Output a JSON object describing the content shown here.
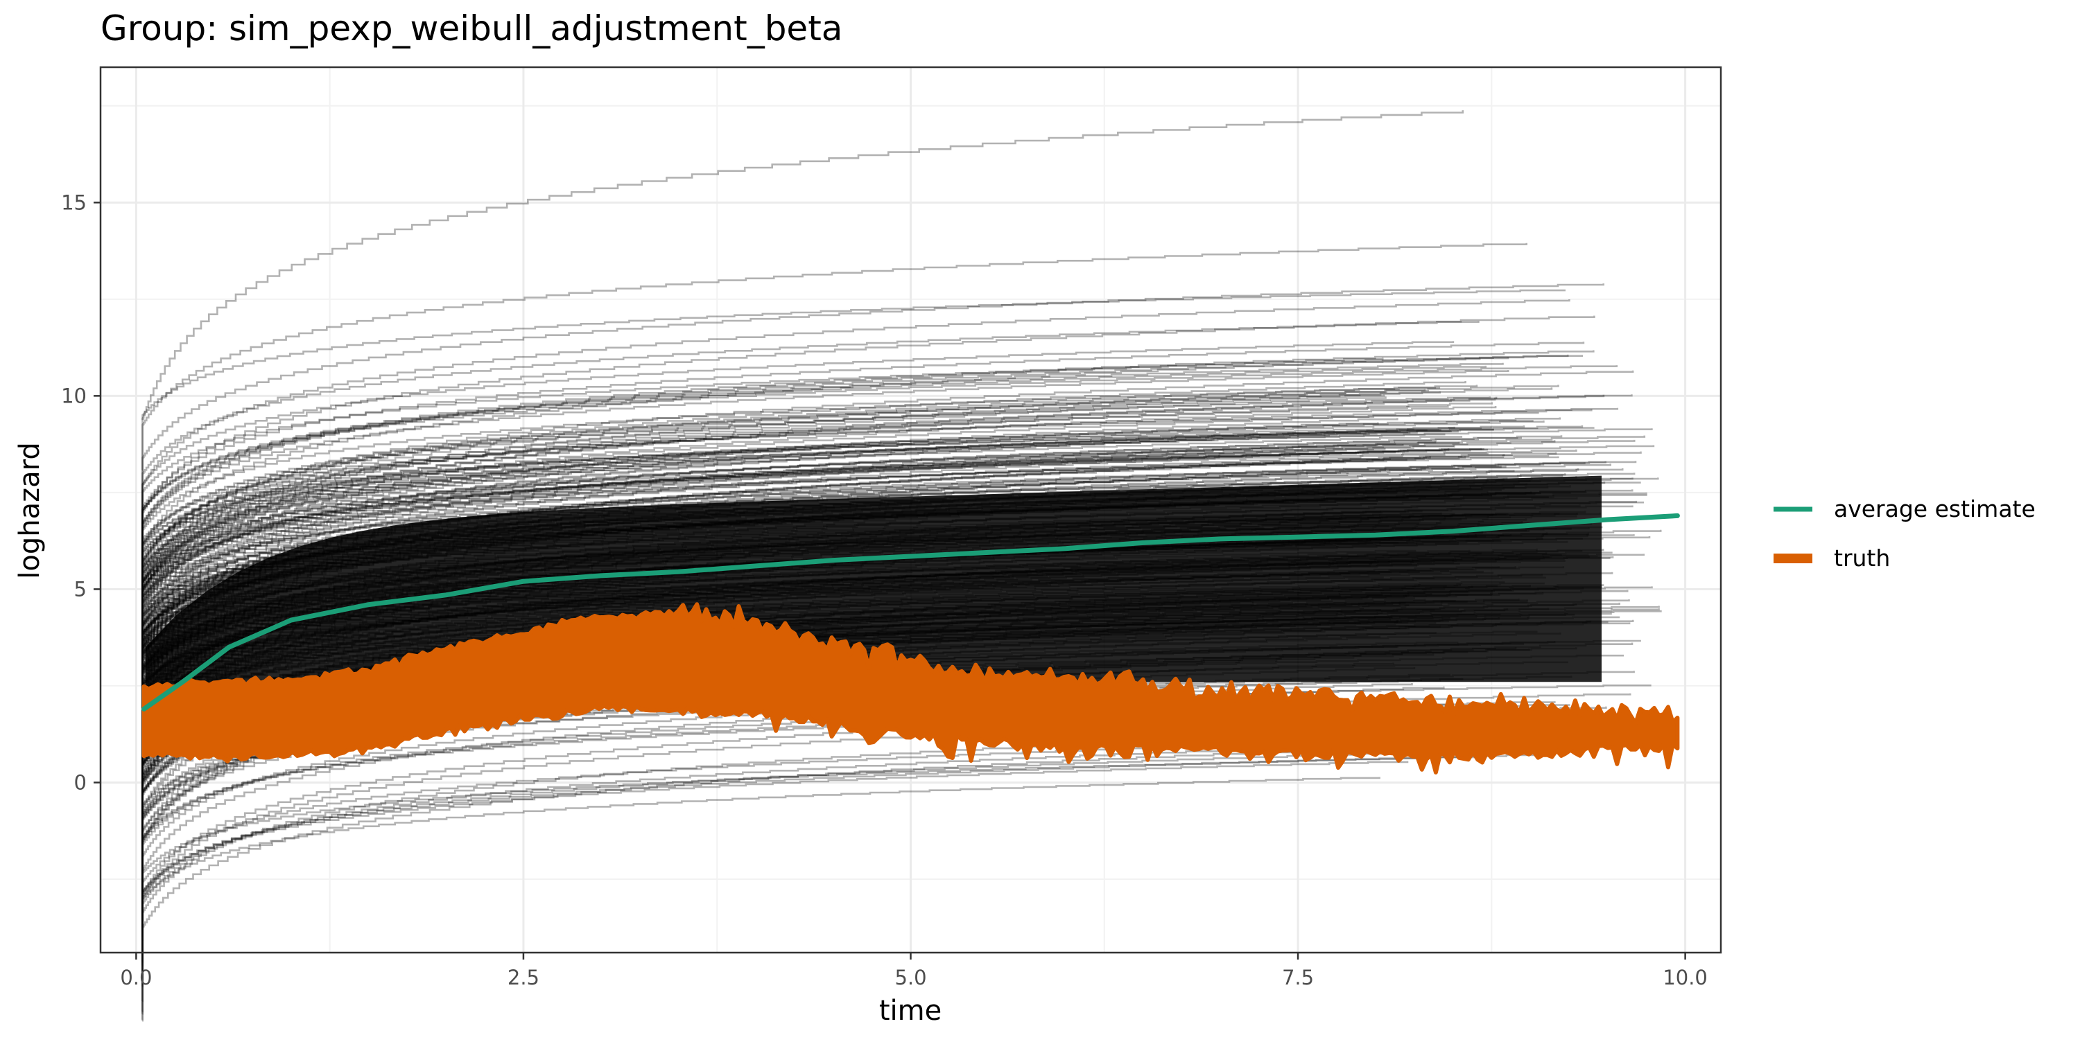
{
  "chart_data": {
    "type": "line",
    "title": "Group: sim_pexp_weibull_adjustment_beta",
    "xlabel": "time",
    "ylabel": "loghazard",
    "xlim": [
      -0.23,
      10.23
    ],
    "ylim": [
      -4.4,
      18.5
    ],
    "x_ticks": [
      0,
      2.5,
      5,
      7.5,
      10
    ],
    "x_tick_labels": [
      "0.0",
      "2.5",
      "5.0",
      "7.5",
      "10.0"
    ],
    "y_ticks": [
      0,
      5,
      10,
      15
    ],
    "y_tick_labels": [
      "0",
      "5",
      "10",
      "15"
    ],
    "grid": true,
    "legend_position": "right",
    "series": [
      {
        "name": "average estimate",
        "color": "#1B9E77",
        "x": [
          0.05,
          0.3,
          0.6,
          1.0,
          1.5,
          2.0,
          2.5,
          3.0,
          3.5,
          4.0,
          4.5,
          5.0,
          5.5,
          6.0,
          6.5,
          7.0,
          7.5,
          8.0,
          8.5,
          9.0,
          9.5,
          9.95
        ],
        "y": [
          1.9,
          2.6,
          3.5,
          4.2,
          4.6,
          4.85,
          5.2,
          5.35,
          5.45,
          5.6,
          5.75,
          5.85,
          5.95,
          6.05,
          6.2,
          6.3,
          6.35,
          6.4,
          6.5,
          6.65,
          6.8,
          6.9
        ]
      },
      {
        "name": "truth",
        "color": "#D95F02",
        "x": [
          0.05,
          0.5,
          1.0,
          1.5,
          2.0,
          2.5,
          3.0,
          3.5,
          4.0,
          4.5,
          5.0,
          5.5,
          6.0,
          6.5,
          7.0,
          7.5,
          8.0,
          8.5,
          9.0,
          9.5,
          9.95
        ],
        "y": [
          1.6,
          1.65,
          1.7,
          1.9,
          2.4,
          2.8,
          3.1,
          3.2,
          3.05,
          2.6,
          2.25,
          2.0,
          1.85,
          1.75,
          1.65,
          1.55,
          1.5,
          1.45,
          1.4,
          1.4,
          1.4
        ],
        "band_halfwidth": [
          0.9,
          1.05,
          1.05,
          1.1,
          1.15,
          1.2,
          1.25,
          1.3,
          1.2,
          1.1,
          1.0,
          0.95,
          0.9,
          0.85,
          0.8,
          0.75,
          0.75,
          0.7,
          0.6,
          0.5,
          0.4
        ]
      }
    ],
    "simulation_runs": {
      "color": "#000000",
      "description_count": 300
    }
  }
}
